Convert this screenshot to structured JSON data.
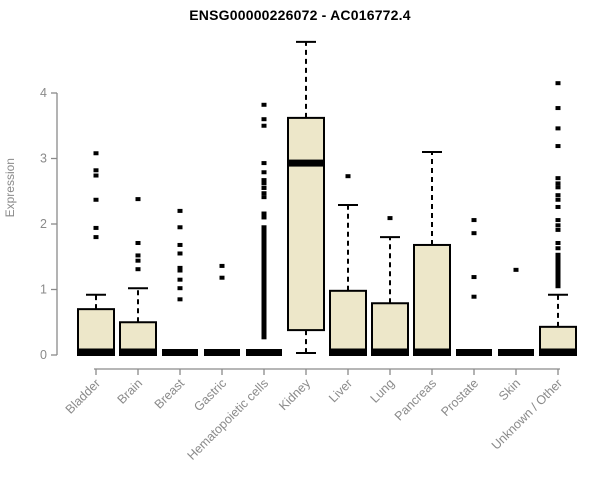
{
  "chart_data": {
    "type": "boxplot",
    "title": "ENSG00000226072 - AC016772.4",
    "ylabel": "Expression",
    "xlabel": "",
    "yticks": [
      0,
      1,
      2,
      3,
      4
    ],
    "ylim": [
      0,
      4.9
    ],
    "grid": false,
    "legend": "none",
    "categories": [
      "Bladder",
      "Brain",
      "Breast",
      "Gastric",
      "Hematopoietic cells",
      "Kidney",
      "Liver",
      "Lung",
      "Pancreas",
      "Prostate",
      "Skin",
      "Unknown / Other"
    ],
    "series": [
      {
        "name": "Bladder",
        "low": 0,
        "q1": 0,
        "median": 0,
        "q3": 0.7,
        "high": 0.92,
        "outliers": [
          3.08,
          2.82,
          2.74,
          2.37,
          1.94,
          1.8
        ]
      },
      {
        "name": "Brain",
        "low": 0,
        "q1": 0,
        "median": 0,
        "q3": 0.5,
        "high": 1.02,
        "outliers": [
          2.38,
          1.71,
          1.52,
          1.44,
          1.31
        ]
      },
      {
        "name": "Breast",
        "low": 0,
        "q1": 0,
        "median": 0,
        "q3": 0,
        "high": 0,
        "outliers": [
          2.2,
          1.95,
          1.68,
          1.55,
          1.33,
          1.29,
          1.15,
          1.02,
          0.85
        ]
      },
      {
        "name": "Gastric",
        "low": 0,
        "q1": 0,
        "median": 0,
        "q3": 0,
        "high": 0,
        "outliers": [
          1.36,
          1.18
        ]
      },
      {
        "name": "Hematopoietic cells",
        "low": 0,
        "q1": 0,
        "median": 0,
        "q3": 0,
        "high": 0,
        "outliers": [
          3.82,
          3.6,
          3.5,
          2.93,
          2.79,
          2.67,
          2.62,
          2.55,
          2.47,
          2.41,
          2.16,
          2.13,
          2.1,
          1.95,
          1.92,
          1.89,
          1.86,
          1.83,
          1.8,
          1.77,
          1.74,
          1.71,
          1.68,
          1.65,
          1.62,
          1.59,
          1.56,
          1.53,
          1.5,
          1.47,
          1.44,
          1.41,
          1.38,
          1.35,
          1.32,
          1.29,
          1.26,
          1.23,
          1.2,
          1.17,
          1.14,
          1.11,
          1.08,
          1.05,
          1.02,
          0.99,
          0.96,
          0.93,
          0.9,
          0.87,
          0.84,
          0.81,
          0.78,
          0.75,
          0.72,
          0.69,
          0.66,
          0.63,
          0.6,
          0.57,
          0.54,
          0.51,
          0.48,
          0.45,
          0.42,
          0.39,
          0.36,
          0.33,
          0.3,
          0.27
        ]
      },
      {
        "name": "Kidney",
        "low": 0.03,
        "q1": 0.38,
        "median": 2.93,
        "q3": 3.62,
        "high": 4.78,
        "outliers": []
      },
      {
        "name": "Liver",
        "low": 0,
        "q1": 0,
        "median": 0,
        "q3": 0.98,
        "high": 2.29,
        "outliers": [
          2.73
        ]
      },
      {
        "name": "Lung",
        "low": 0,
        "q1": 0,
        "median": 0,
        "q3": 0.79,
        "high": 1.8,
        "outliers": [
          2.09
        ]
      },
      {
        "name": "Pancreas",
        "low": 0,
        "q1": 0,
        "median": 0,
        "q3": 1.68,
        "high": 3.1,
        "outliers": []
      },
      {
        "name": "Prostate",
        "low": 0,
        "q1": 0,
        "median": 0,
        "q3": 0,
        "high": 0,
        "outliers": [
          2.06,
          1.86,
          1.19,
          0.89
        ]
      },
      {
        "name": "Skin",
        "low": 0,
        "q1": 0,
        "median": 0,
        "q3": 0,
        "high": 0,
        "outliers": [
          1.3
        ]
      },
      {
        "name": "Unknown / Other",
        "low": 0,
        "q1": 0,
        "median": 0,
        "q3": 0.43,
        "high": 0.92,
        "outliers": [
          4.15,
          3.77,
          3.46,
          3.19,
          2.7,
          2.62,
          2.56,
          2.44,
          2.37,
          2.26,
          2.06,
          1.98,
          1.91,
          1.71,
          1.63,
          1.53,
          1.49,
          1.45,
          1.41,
          1.37,
          1.33,
          1.29,
          1.25,
          1.21,
          1.17,
          1.13,
          1.09,
          1.05
        ]
      }
    ],
    "colors": {
      "background": "#ffffff",
      "box_fill": "#ede7c9",
      "box_stroke": "#000000",
      "median": "#000000",
      "whisker": "#000000",
      "outlier": "#000000",
      "axis": "#8a8a8a",
      "tick_label": "#8a8a8a",
      "title": "#000000"
    }
  }
}
